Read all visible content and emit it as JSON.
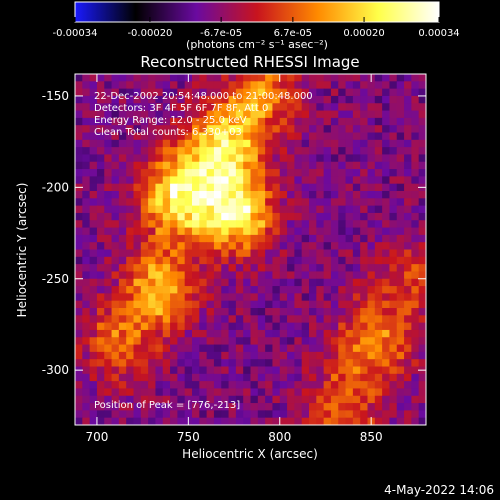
{
  "chart_data": {
    "type": "heatmap",
    "title": "Reconstructed RHESSI Image",
    "xlabel": "Heliocentric X (arcsec)",
    "ylabel": "Heliocentric Y (arcsec)",
    "xlim": [
      688,
      880
    ],
    "ylim": [
      -330,
      -138
    ],
    "xticks": [
      700,
      750,
      800,
      850
    ],
    "yticks": [
      -150,
      -200,
      -250,
      -300
    ],
    "colorbar": {
      "min": -0.00034,
      "max": 0.00034,
      "ticks": [
        "-0.00034",
        "-0.00020",
        "-6.7e-05",
        "6.7e-05",
        "0.00020",
        "0.00034"
      ],
      "label": "(photons cm⁻² s⁻¹ asec⁻²)",
      "colormap": [
        "#1a1aff",
        "#000000",
        "#6a0aa0",
        "#c8141e",
        "#ff8a00",
        "#ffff4a",
        "#ffffff"
      ]
    },
    "annotations": [
      "22-Dec-2002 20:54:48.000 to 21:00:48.000",
      "Detectors: 3F 4F 5F 6F 7F 8F, Att 0",
      "Energy Range: 12.0 - 25.0 keV",
      "Clean     Total counts: 6.330+03"
    ],
    "peak_text": "Position of Peak = [776,-213]",
    "peak": [
      776,
      -213
    ],
    "grid": false,
    "emission_regions": [
      {
        "x": 744,
        "y": -205,
        "intensity": 0.00034
      },
      {
        "x": 768,
        "y": -178,
        "intensity": 0.0003
      },
      {
        "x": 776,
        "y": -213,
        "intensity": 0.00034
      },
      {
        "x": 735,
        "y": -255,
        "intensity": 0.00024
      },
      {
        "x": 790,
        "y": -150,
        "intensity": 0.0002
      },
      {
        "x": 712,
        "y": -285,
        "intensity": 0.00016
      },
      {
        "x": 852,
        "y": -285,
        "intensity": 0.0002
      },
      {
        "x": 835,
        "y": -320,
        "intensity": 0.00016
      },
      {
        "x": 870,
        "y": -250,
        "intensity": 0.00012
      }
    ]
  },
  "footer": {
    "date": "4-May-2022 14:06"
  }
}
